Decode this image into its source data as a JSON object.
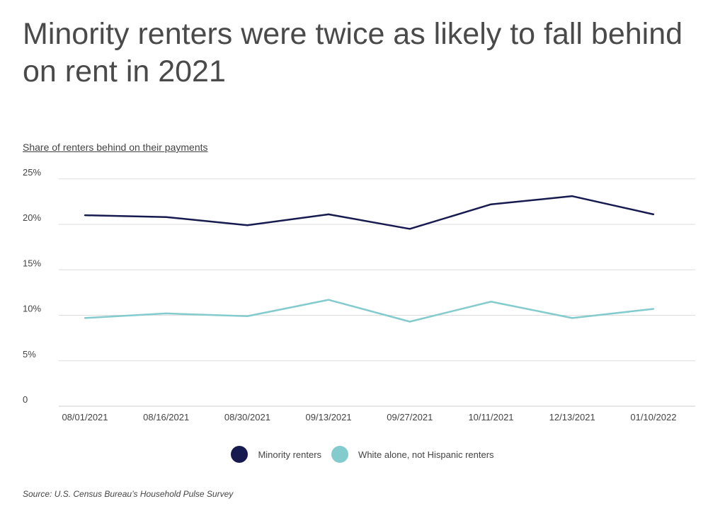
{
  "chart_data": {
    "type": "line",
    "title": "Minority renters were twice as likely to fall behind on rent in 2021",
    "subtitle": "Share of renters behind on their payments",
    "categories": [
      "08/01/2021",
      "08/16/2021",
      "08/30/2021",
      "09/13/2021",
      "09/27/2021",
      "10/11/2021",
      "12/13/2021",
      "01/10/2022"
    ],
    "series": [
      {
        "name": "Minority renters",
        "color": "#161a4f",
        "values": [
          21.0,
          20.8,
          19.9,
          21.1,
          19.5,
          22.2,
          23.1,
          21.1
        ]
      },
      {
        "name": "White alone, not Hispanic renters",
        "color": "#84cbcd",
        "values": [
          9.7,
          10.2,
          9.9,
          11.7,
          9.3,
          11.5,
          9.7,
          10.7
        ]
      }
    ],
    "ylim": [
      0,
      25
    ],
    "yticks": [
      0,
      5,
      10,
      15,
      20,
      25
    ],
    "ytick_labels": [
      "0",
      "5%",
      "10%",
      "15%",
      "20%",
      "25%"
    ],
    "grid": true,
    "legend": "bottom-center",
    "source": "Source:  U.S. Census Bureau’s Household Pulse Survey"
  }
}
